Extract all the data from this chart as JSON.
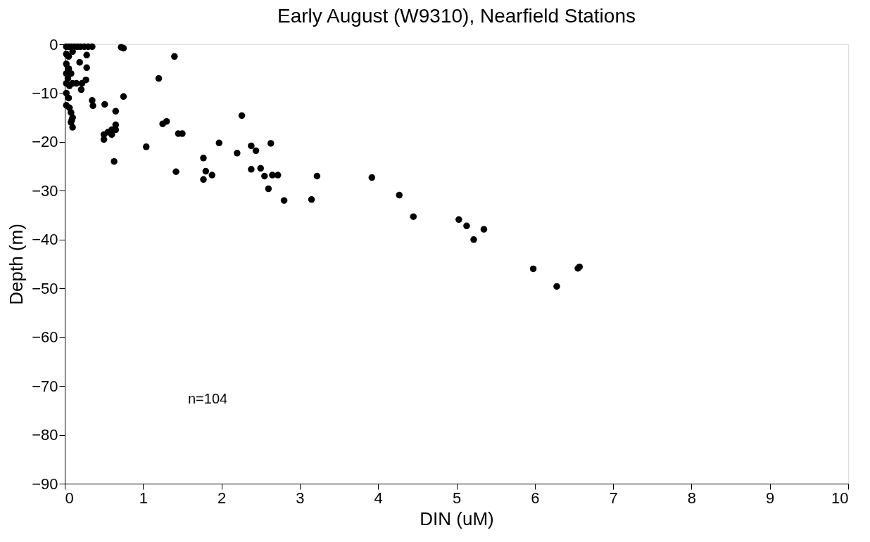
{
  "chart_data": {
    "type": "scatter",
    "title": "Early August (W9310), Nearfield Stations",
    "xlabel": "DIN (uM)",
    "ylabel": "Depth (m)",
    "xlim": [
      0,
      10
    ],
    "xticks": [
      0,
      1,
      2,
      3,
      4,
      5,
      6,
      7,
      8,
      9,
      10
    ],
    "ylim": [
      -90,
      0
    ],
    "yticks": [
      -90,
      -80,
      -70,
      -60,
      -50,
      -40,
      -30,
      -20,
      -10,
      0
    ],
    "grid": false,
    "marker": "circle",
    "annotations": [
      "n=104"
    ],
    "x": [
      0.02,
      0.05,
      0.08,
      0.12,
      0.16,
      0.2,
      0.25,
      0.3,
      0.35,
      0.02,
      0.05,
      0.1,
      0.02,
      0.05,
      0.02,
      0.04,
      0.08,
      0.02,
      0.06,
      0.1,
      0.02,
      0.05,
      0.02,
      0.06,
      0.08,
      0.1,
      0.08,
      0.1,
      0.09,
      0.19,
      0.28,
      0.28,
      0.27,
      0.22,
      0.21,
      0.15,
      0.35,
      0.36,
      0.51,
      0.72,
      0.75,
      1.4,
      1.2,
      0.75,
      0.65,
      0.65,
      0.6,
      0.55,
      0.5,
      0.5,
      0.6,
      0.65,
      0.63,
      1.04,
      1.25,
      1.3,
      1.45,
      1.5,
      1.42,
      2.26,
      1.77,
      1.8,
      1.77,
      1.88,
      1.97,
      2.2,
      2.38,
      2.44,
      2.63,
      2.38,
      2.5,
      2.55,
      2.65,
      2.72,
      2.6,
      2.8,
      3.15,
      3.22,
      3.92,
      4.27,
      4.45,
      5.03,
      5.13,
      5.35,
      5.22,
      5.98,
      6.28,
      6.55,
      6.57
    ],
    "series": [
      {
        "color": "#000000",
        "values": [
          -0.5,
          -0.5,
          -0.5,
          -0.5,
          -0.5,
          -0.5,
          -0.5,
          -0.5,
          -0.5,
          -2,
          -2.5,
          -1.5,
          -4,
          -5,
          -6,
          -7,
          -6,
          -8,
          -8.5,
          -8,
          -10,
          -11,
          -12.5,
          -13,
          -14,
          -15,
          -16,
          -17,
          -15.5,
          -3.7,
          -2.2,
          -4.8,
          -7.3,
          -8,
          -9.3,
          -8,
          -11.5,
          -12.6,
          -12.3,
          -0.6,
          -0.8,
          -2.5,
          -7,
          -10.7,
          -13.7,
          -16.5,
          -17.5,
          -18,
          -18.5,
          -19.5,
          -18.5,
          -17.5,
          -24,
          -21,
          -16.3,
          -15.8,
          -18.3,
          -18.3,
          -26.1,
          -14.6,
          -23.3,
          -26,
          -27.7,
          -26.8,
          -20.2,
          -22.3,
          -20.8,
          -21.8,
          -20.3,
          -25.6,
          -25.4,
          -27,
          -26.8,
          -26.8,
          -29.6,
          -32,
          -31.8,
          -27,
          -27.3,
          -30.9,
          -35.3,
          -35.9,
          -37.2,
          -37.9,
          -40,
          -46,
          -49.6,
          -45.9,
          -45.6
        ]
      }
    ]
  }
}
